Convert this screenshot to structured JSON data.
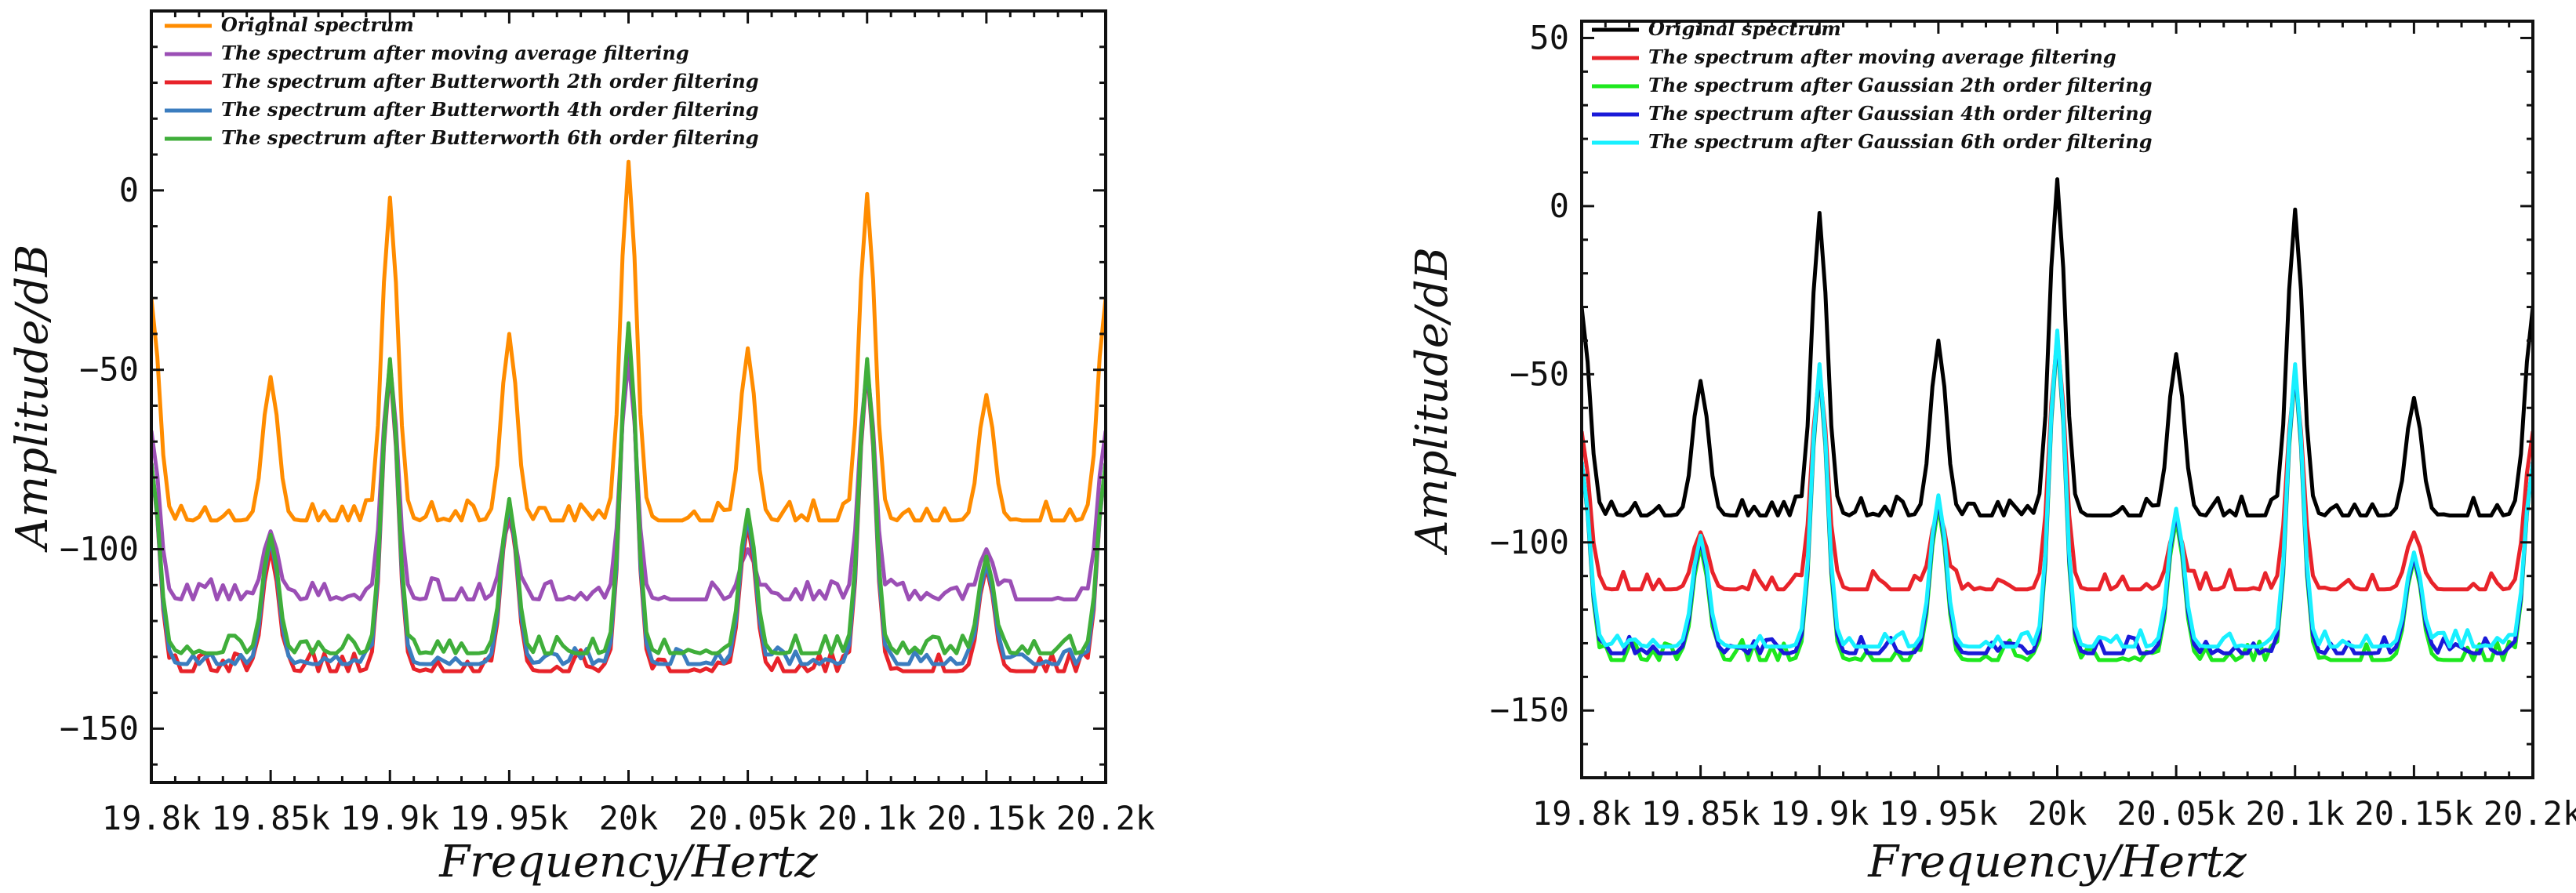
{
  "chart_data": [
    {
      "type": "line",
      "xlabel": "Frequency/Hertz",
      "ylabel": "Amplitude/dB",
      "xlim": [
        19800,
        20200
      ],
      "ylim": [
        -165,
        50
      ],
      "xticks": [
        19800,
        19850,
        19900,
        19950,
        20000,
        20050,
        20100,
        20150,
        20200
      ],
      "xtick_labels": [
        "19.8k",
        "19.85k",
        "19.9k",
        "19.95k",
        "20k",
        "20.05k",
        "20.1k",
        "20.15k",
        "20.2k"
      ],
      "yticks": [
        0,
        -50,
        -100,
        -150
      ],
      "ytick_labels": [
        "0",
        "−50",
        "−100",
        "−150"
      ],
      "legend_position": "top-left",
      "peaks_x": [
        19800,
        19850,
        19900,
        19950,
        20000,
        20050,
        20100,
        20150,
        20200
      ],
      "series": [
        {
          "name": "Original spectrum",
          "color": "#ff8c00",
          "baseline": -92,
          "jitter": 6,
          "seed": 11,
          "peaks": [
            -30,
            -52,
            -2,
            -40,
            8,
            -44,
            -1,
            -57,
            -30
          ]
        },
        {
          "name": "The spectrum after moving average filtering",
          "color": "#9b4fb5",
          "baseline": -114,
          "jitter": 6,
          "seed": 23,
          "peaks": [
            -67,
            -95,
            -48,
            -92,
            -47,
            -100,
            -49,
            -100,
            -67
          ]
        },
        {
          "name": "The spectrum after Butterworth 2th order filtering",
          "color": "#e8232a",
          "baseline": -134,
          "jitter": 6,
          "seed": 37,
          "peaks": [
            -76,
            -100,
            -49,
            -88,
            -38,
            -93,
            -49,
            -105,
            -76
          ]
        },
        {
          "name": "The spectrum after Butterworth 4th order filtering",
          "color": "#3b7dbf",
          "baseline": -132,
          "jitter": 5,
          "seed": 41,
          "peaks": [
            -76,
            -97,
            -48,
            -87,
            -38,
            -91,
            -48,
            -104,
            -76
          ]
        },
        {
          "name": "The spectrum after Butterworth 6th order filtering",
          "color": "#3fae3a",
          "baseline": -129,
          "jitter": 5,
          "seed": 53,
          "peaks": [
            -76,
            -96,
            -47,
            -86,
            -37,
            -89,
            -47,
            -102,
            -76
          ]
        }
      ]
    },
    {
      "type": "line",
      "xlabel": "Frequency/Hertz",
      "ylabel": "Amplitude/dB",
      "xlim": [
        19800,
        20200
      ],
      "ylim": [
        -170,
        55
      ],
      "xticks": [
        19800,
        19850,
        19900,
        19950,
        20000,
        20050,
        20100,
        20150,
        20200
      ],
      "xtick_labels": [
        "19.8k",
        "19.85k",
        "19.9k",
        "19.95k",
        "20k",
        "20.05k",
        "20.1k",
        "20.15k",
        "20.2k"
      ],
      "yticks": [
        50,
        0,
        -50,
        -100,
        -150
      ],
      "ytick_labels": [
        "50",
        "0",
        "−50",
        "−100",
        "−150"
      ],
      "legend_position": "top-left",
      "peaks_x": [
        19800,
        19850,
        19900,
        19950,
        20000,
        20050,
        20100,
        20150,
        20200
      ],
      "series": [
        {
          "name": "Original spectrum",
          "color": "#000000",
          "baseline": -92,
          "jitter": 6,
          "seed": 11,
          "peaks": [
            -30,
            -52,
            -2,
            -40,
            8,
            -44,
            -1,
            -57,
            -30
          ]
        },
        {
          "name": "The spectrum after moving average filtering",
          "color": "#e8232a",
          "baseline": -114,
          "jitter": 6,
          "seed": 29,
          "peaks": [
            -67,
            -97,
            -49,
            -90,
            -39,
            -95,
            -50,
            -97,
            -67
          ]
        },
        {
          "name": "The spectrum after Gaussian 2th order filtering",
          "color": "#1ee81e",
          "baseline": -135,
          "jitter": 6,
          "seed": 37,
          "peaks": [
            -76,
            -101,
            -49,
            -89,
            -39,
            -93,
            -49,
            -105,
            -76
          ]
        },
        {
          "name": "The spectrum after Gaussian 4th order filtering",
          "color": "#1a1ad8",
          "baseline": -133,
          "jitter": 5,
          "seed": 43,
          "peaks": [
            -76,
            -99,
            -48,
            -87,
            -38,
            -91,
            -48,
            -104,
            -76
          ]
        },
        {
          "name": "The spectrum after Gaussian 6th order filtering",
          "color": "#18f0ff",
          "baseline": -131,
          "jitter": 5,
          "seed": 59,
          "peaks": [
            -76,
            -98,
            -47,
            -86,
            -37,
            -90,
            -47,
            -103,
            -76
          ]
        }
      ]
    }
  ]
}
